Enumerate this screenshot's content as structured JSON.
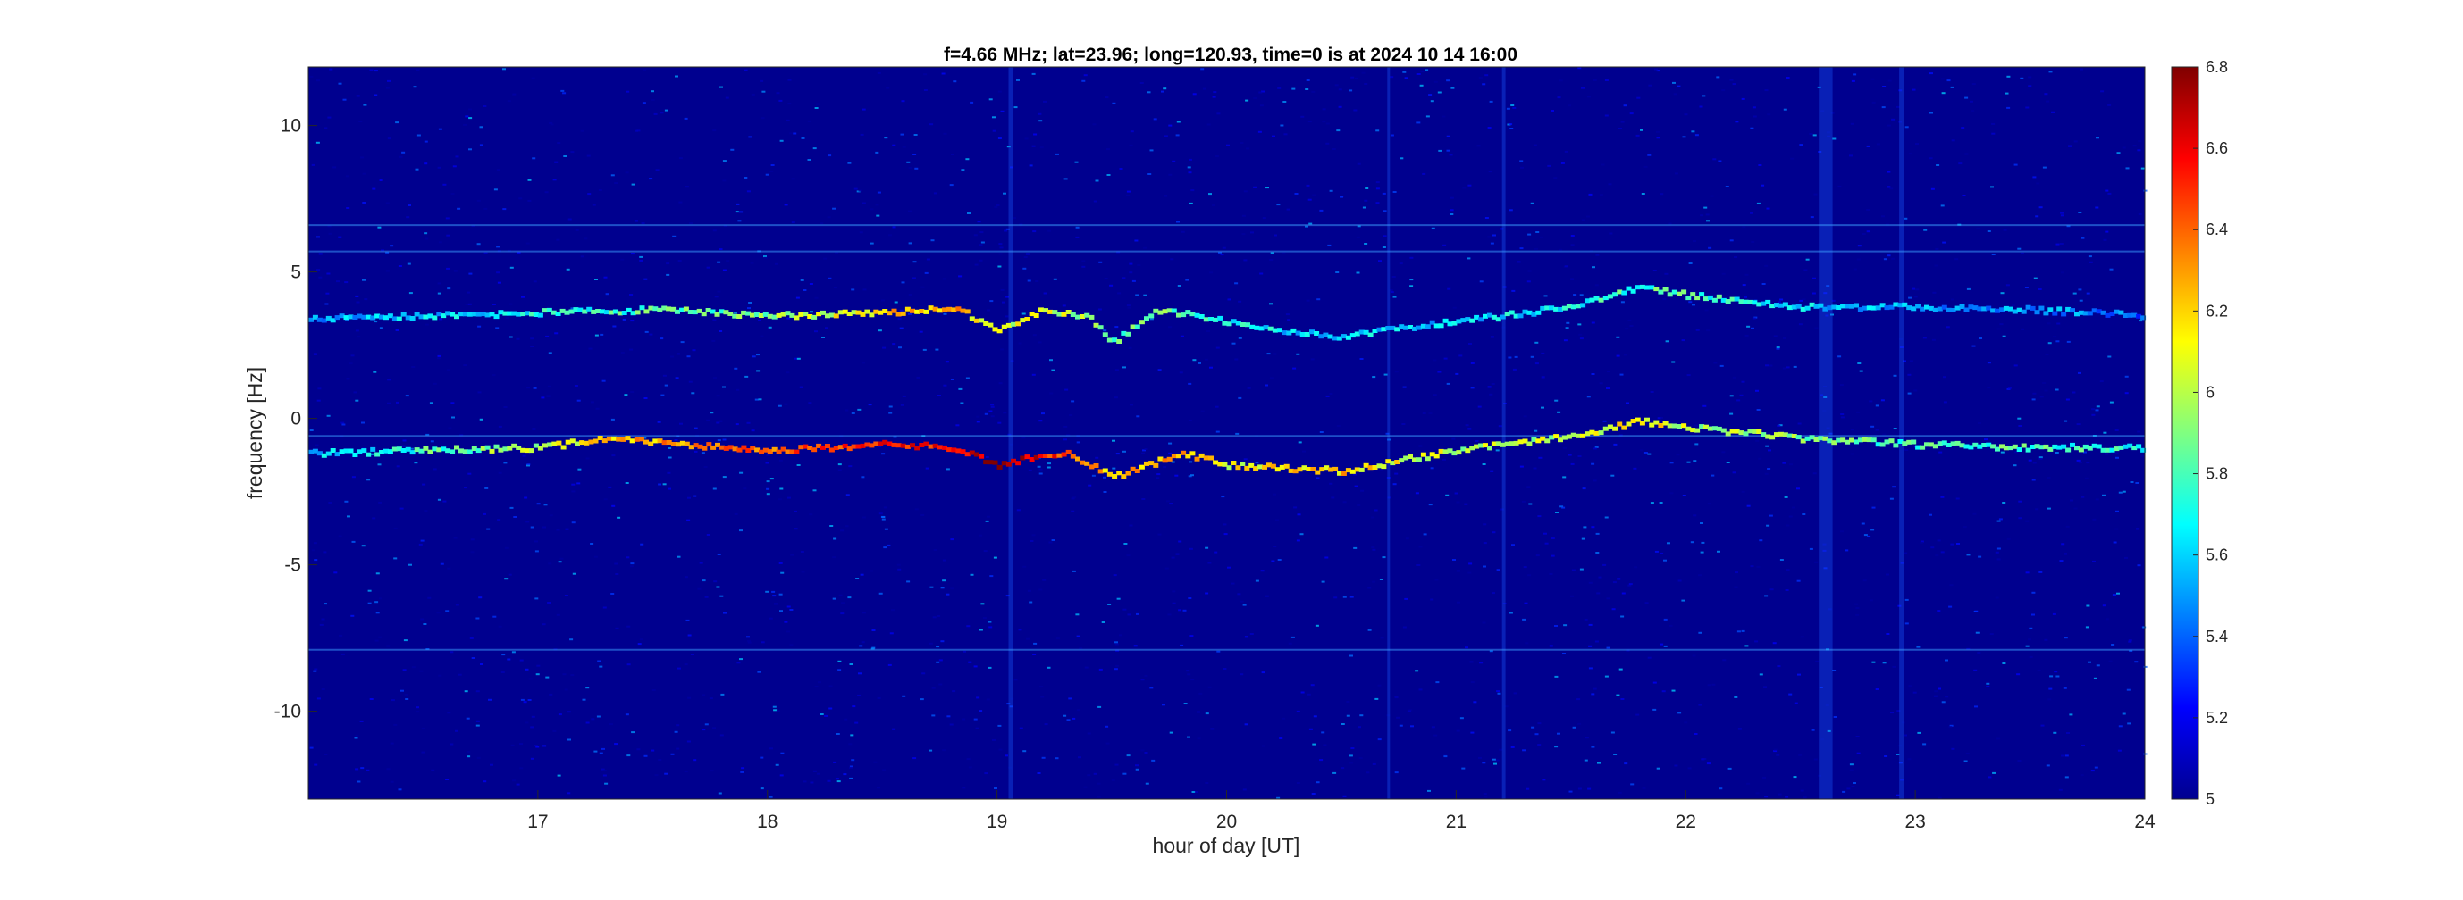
{
  "chart_data": {
    "type": "heatmap",
    "title": "f=4.66 MHz;  lat=23.96; long=120.93, time=0 is at 2024 10 14 16:00",
    "xlabel": "hour of day [UT]",
    "ylabel": "frequency [Hz]",
    "xlim": [
      16,
      24
    ],
    "ylim": [
      -13,
      12
    ],
    "xticks": [
      17,
      18,
      19,
      20,
      21,
      22,
      23,
      24
    ],
    "yticks": [
      -10,
      -5,
      0,
      5,
      10
    ],
    "colorbar": {
      "range": [
        5,
        6.8
      ],
      "ticks": [
        5,
        5.2,
        5.4,
        5.6,
        5.8,
        6,
        6.2,
        6.4,
        6.6,
        6.8
      ],
      "colormap": "jet",
      "background": "#00008f"
    },
    "traces": [
      {
        "name": "lower-trace",
        "x": [
          16.0,
          16.5,
          17.0,
          17.3,
          17.6,
          18.0,
          18.5,
          18.8,
          19.0,
          19.1,
          19.3,
          19.5,
          19.8,
          20.0,
          20.5,
          21.0,
          21.5,
          21.8,
          22.0,
          22.5,
          23.0,
          23.5,
          24.0
        ],
        "y": [
          -1.2,
          -1.1,
          -1.0,
          -0.7,
          -0.9,
          -1.1,
          -0.9,
          -1.0,
          -1.6,
          -1.4,
          -1.2,
          -2.0,
          -1.2,
          -1.6,
          -1.8,
          -1.1,
          -0.6,
          -0.1,
          -0.3,
          -0.7,
          -0.9,
          -1.0,
          -1.0
        ],
        "intensity": [
          5.6,
          5.8,
          6.0,
          6.2,
          6.3,
          6.4,
          6.5,
          6.6,
          6.8,
          6.7,
          6.4,
          6.2,
          6.3,
          6.1,
          6.2,
          6.0,
          6.0,
          6.2,
          6.0,
          5.9,
          5.8,
          5.8,
          5.7
        ]
      },
      {
        "name": "upper-trace",
        "x": [
          16.0,
          16.5,
          17.0,
          17.5,
          18.0,
          18.5,
          18.8,
          19.0,
          19.2,
          19.4,
          19.5,
          19.7,
          20.0,
          20.3,
          20.5,
          21.0,
          21.5,
          21.8,
          22.0,
          22.5,
          23.0,
          23.5,
          24.0
        ],
        "y": [
          3.4,
          3.5,
          3.6,
          3.7,
          3.5,
          3.6,
          3.8,
          3.0,
          3.7,
          3.4,
          2.6,
          3.7,
          3.3,
          2.9,
          2.8,
          3.3,
          3.8,
          4.5,
          4.2,
          3.8,
          3.8,
          3.7,
          3.5
        ],
        "intensity": [
          5.5,
          5.6,
          5.7,
          5.8,
          5.9,
          6.2,
          6.3,
          6.0,
          6.1,
          5.9,
          5.8,
          5.9,
          5.7,
          5.6,
          5.6,
          5.6,
          5.7,
          5.8,
          5.8,
          5.6,
          5.5,
          5.5,
          5.4
        ]
      }
    ],
    "flat_lines_y": [
      -0.6,
      -7.9,
      5.7,
      6.6
    ]
  }
}
